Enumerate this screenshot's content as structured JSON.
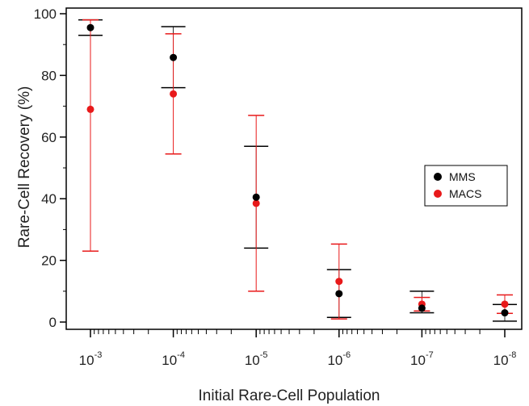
{
  "chart_data": {
    "type": "scatter",
    "title": "",
    "xlabel": "Initial Rare-Cell Population",
    "ylabel": "Rare-Cell Recovery (%)",
    "x_scale": "log",
    "x_axis_reversed": true,
    "x_ticks": [
      {
        "value": 0.001,
        "base": "10",
        "exp": "-3"
      },
      {
        "value": 0.0001,
        "base": "10",
        "exp": "-4"
      },
      {
        "value": 1e-05,
        "base": "10",
        "exp": "-5"
      },
      {
        "value": 1e-06,
        "base": "10",
        "exp": "-6"
      },
      {
        "value": 1e-07,
        "base": "10",
        "exp": "-7"
      },
      {
        "value": 1e-08,
        "base": "10",
        "exp": "-8"
      }
    ],
    "y_ticks": [
      "0",
      "20",
      "40",
      "60",
      "80",
      "100"
    ],
    "ylim": [
      -2,
      100
    ],
    "grid": false,
    "legend_position": "right",
    "series": [
      {
        "name": "MMS",
        "color": "#000000",
        "error_bar_color": "#000000",
        "points": [
          {
            "x": 0.001,
            "y": 95.5,
            "err_low": 93,
            "err_high": 98
          },
          {
            "x": 0.0001,
            "y": 85.8,
            "err_low": 76,
            "err_high": 95.8
          },
          {
            "x": 1e-05,
            "y": 40.5,
            "err_low": 24,
            "err_high": 57
          },
          {
            "x": 1e-06,
            "y": 9.2,
            "err_low": 1.5,
            "err_high": 17
          },
          {
            "x": 1e-07,
            "y": 4.5,
            "err_low": 3,
            "err_high": 10
          },
          {
            "x": 1e-08,
            "y": 3,
            "err_low": 0.3,
            "err_high": 5.7
          }
        ]
      },
      {
        "name": "MACS",
        "color": "#e8191a",
        "error_bar_color": "#e8191a",
        "points": [
          {
            "x": 0.001,
            "y": 69,
            "err_low": 23,
            "err_high": 98
          },
          {
            "x": 0.0001,
            "y": 74,
            "err_low": 54.5,
            "err_high": 93.5
          },
          {
            "x": 1e-05,
            "y": 38.5,
            "err_low": 10,
            "err_high": 67
          },
          {
            "x": 1e-06,
            "y": 13.2,
            "err_low": 1,
            "err_high": 25.3
          },
          {
            "x": 1e-07,
            "y": 5.8,
            "err_low": 3.6,
            "err_high": 8
          },
          {
            "x": 1e-08,
            "y": 5.8,
            "err_low": 2.8,
            "err_high": 8.8
          }
        ]
      }
    ]
  }
}
